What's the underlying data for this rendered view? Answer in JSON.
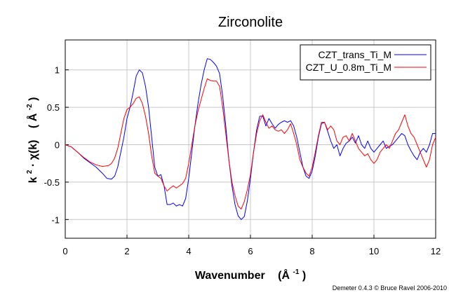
{
  "chart_data": {
    "type": "line",
    "title": "Zirconolite",
    "xlabel": {
      "main": "Wavenumber",
      "unit_base": "Å",
      "unit_sup": "-1"
    },
    "ylabel": {
      "k": "k",
      "k_sup": "2",
      "mid": " · χ(k)",
      "unit_base": "Å",
      "unit_sup": "-2"
    },
    "credit": "Demeter 0.4.3 © Bruce Ravel 2006-2010",
    "xlim": [
      0,
      12
    ],
    "ylim": [
      -1.25,
      1.4
    ],
    "x_ticks": [
      "0",
      "2",
      "4",
      "6",
      "8",
      "10",
      "12"
    ],
    "x_tick_values": [
      0,
      2,
      4,
      6,
      8,
      10,
      12
    ],
    "y_ticks": [
      "-1",
      "-0.5",
      "0",
      "0.5",
      "1"
    ],
    "y_tick_values": [
      -1,
      -0.5,
      0,
      0.5,
      1
    ],
    "grid": true,
    "legend_position": "top-right",
    "series": [
      {
        "name": "CZT_trans_Ti_M",
        "color": "#0000ff",
        "points": [
          [
            0,
            0
          ],
          [
            0.2,
            -0.03
          ],
          [
            0.4,
            -0.1
          ],
          [
            0.6,
            -0.18
          ],
          [
            0.8,
            -0.24
          ],
          [
            1.0,
            -0.3
          ],
          [
            1.2,
            -0.38
          ],
          [
            1.35,
            -0.45
          ],
          [
            1.5,
            -0.46
          ],
          [
            1.6,
            -0.42
          ],
          [
            1.7,
            -0.3
          ],
          [
            1.8,
            -0.1
          ],
          [
            1.9,
            0.1
          ],
          [
            2.0,
            0.35
          ],
          [
            2.1,
            0.5
          ],
          [
            2.2,
            0.7
          ],
          [
            2.3,
            0.92
          ],
          [
            2.4,
            1.0
          ],
          [
            2.5,
            0.96
          ],
          [
            2.6,
            0.78
          ],
          [
            2.7,
            0.5
          ],
          [
            2.8,
            0.1
          ],
          [
            2.9,
            -0.3
          ],
          [
            3.0,
            -0.42
          ],
          [
            3.1,
            -0.4
          ],
          [
            3.2,
            -0.55
          ],
          [
            3.3,
            -0.8
          ],
          [
            3.4,
            -0.8
          ],
          [
            3.5,
            -0.78
          ],
          [
            3.6,
            -0.82
          ],
          [
            3.7,
            -0.8
          ],
          [
            3.8,
            -0.82
          ],
          [
            3.9,
            -0.72
          ],
          [
            4.0,
            -0.45
          ],
          [
            4.1,
            -0.1
          ],
          [
            4.2,
            0.25
          ],
          [
            4.3,
            0.55
          ],
          [
            4.4,
            0.8
          ],
          [
            4.5,
            1.0
          ],
          [
            4.6,
            1.15
          ],
          [
            4.7,
            1.14
          ],
          [
            4.8,
            1.1
          ],
          [
            4.9,
            1.05
          ],
          [
            5.0,
            0.95
          ],
          [
            5.1,
            0.65
          ],
          [
            5.2,
            0.25
          ],
          [
            5.3,
            -0.2
          ],
          [
            5.4,
            -0.55
          ],
          [
            5.5,
            -0.8
          ],
          [
            5.6,
            -0.95
          ],
          [
            5.7,
            -1.0
          ],
          [
            5.8,
            -0.96
          ],
          [
            5.9,
            -0.75
          ],
          [
            6.0,
            -0.45
          ],
          [
            6.1,
            -0.1
          ],
          [
            6.2,
            0.2
          ],
          [
            6.3,
            0.38
          ],
          [
            6.4,
            0.38
          ],
          [
            6.5,
            0.25
          ],
          [
            6.6,
            0.35
          ],
          [
            6.7,
            0.28
          ],
          [
            6.8,
            0.22
          ],
          [
            6.9,
            0.27
          ],
          [
            7.0,
            0.3
          ],
          [
            7.1,
            0.32
          ],
          [
            7.2,
            0.3
          ],
          [
            7.3,
            0.32
          ],
          [
            7.4,
            0.25
          ],
          [
            7.5,
            0.1
          ],
          [
            7.6,
            -0.1
          ],
          [
            7.7,
            -0.3
          ],
          [
            7.8,
            -0.42
          ],
          [
            7.9,
            -0.45
          ],
          [
            8.0,
            -0.35
          ],
          [
            8.1,
            -0.15
          ],
          [
            8.2,
            0.1
          ],
          [
            8.3,
            0.28
          ],
          [
            8.4,
            0.3
          ],
          [
            8.5,
            0.18
          ],
          [
            8.6,
            0.05
          ],
          [
            8.7,
            -0.05
          ],
          [
            8.8,
            0.0
          ],
          [
            8.9,
            -0.15
          ],
          [
            9.0,
            -0.05
          ],
          [
            9.1,
            0.02
          ],
          [
            9.2,
            0.05
          ],
          [
            9.3,
            0.1
          ],
          [
            9.4,
            0.02
          ],
          [
            9.5,
            0.12
          ],
          [
            9.6,
            0.0
          ],
          [
            9.7,
            -0.05
          ],
          [
            9.8,
            0.05
          ],
          [
            9.9,
            -0.05
          ],
          [
            10.0,
            -0.1
          ],
          [
            10.1,
            -0.05
          ],
          [
            10.2,
            0.0
          ],
          [
            10.3,
            0.05
          ],
          [
            10.4,
            -0.05
          ],
          [
            10.5,
            -0.02
          ],
          [
            10.6,
            0.0
          ],
          [
            10.7,
            0.05
          ],
          [
            10.8,
            0.1
          ],
          [
            10.9,
            0.15
          ],
          [
            11.0,
            0.12
          ],
          [
            11.1,
            0.0
          ],
          [
            11.2,
            -0.08
          ],
          [
            11.3,
            -0.15
          ],
          [
            11.4,
            -0.2
          ],
          [
            11.5,
            -0.1
          ],
          [
            11.6,
            -0.05
          ],
          [
            11.7,
            -0.1
          ],
          [
            11.8,
            0.0
          ],
          [
            11.9,
            0.15
          ],
          [
            12.0,
            0.15
          ]
        ]
      },
      {
        "name": "CZT_U_0.8m_Ti_M",
        "color": "#ff0000",
        "points": [
          [
            0,
            0
          ],
          [
            0.2,
            -0.03
          ],
          [
            0.4,
            -0.1
          ],
          [
            0.6,
            -0.17
          ],
          [
            0.8,
            -0.23
          ],
          [
            1.0,
            -0.27
          ],
          [
            1.2,
            -0.29
          ],
          [
            1.4,
            -0.28
          ],
          [
            1.5,
            -0.25
          ],
          [
            1.6,
            -0.18
          ],
          [
            1.7,
            -0.05
          ],
          [
            1.8,
            0.15
          ],
          [
            1.9,
            0.35
          ],
          [
            2.0,
            0.47
          ],
          [
            2.1,
            0.5
          ],
          [
            2.2,
            0.55
          ],
          [
            2.3,
            0.62
          ],
          [
            2.4,
            0.64
          ],
          [
            2.5,
            0.55
          ],
          [
            2.6,
            0.38
          ],
          [
            2.7,
            0.15
          ],
          [
            2.8,
            -0.15
          ],
          [
            2.9,
            -0.38
          ],
          [
            3.0,
            -0.42
          ],
          [
            3.1,
            -0.45
          ],
          [
            3.2,
            -0.55
          ],
          [
            3.3,
            -0.62
          ],
          [
            3.4,
            -0.58
          ],
          [
            3.5,
            -0.55
          ],
          [
            3.6,
            -0.58
          ],
          [
            3.7,
            -0.55
          ],
          [
            3.8,
            -0.52
          ],
          [
            3.9,
            -0.45
          ],
          [
            4.0,
            -0.25
          ],
          [
            4.1,
            0.0
          ],
          [
            4.2,
            0.25
          ],
          [
            4.3,
            0.45
          ],
          [
            4.4,
            0.6
          ],
          [
            4.5,
            0.75
          ],
          [
            4.6,
            0.88
          ],
          [
            4.7,
            0.86
          ],
          [
            4.8,
            0.85
          ],
          [
            4.9,
            0.85
          ],
          [
            5.0,
            0.78
          ],
          [
            5.1,
            0.5
          ],
          [
            5.2,
            0.15
          ],
          [
            5.3,
            -0.2
          ],
          [
            5.4,
            -0.5
          ],
          [
            5.5,
            -0.68
          ],
          [
            5.6,
            -0.82
          ],
          [
            5.7,
            -0.86
          ],
          [
            5.8,
            -0.76
          ],
          [
            5.9,
            -0.6
          ],
          [
            6.0,
            -0.4
          ],
          [
            6.1,
            -0.1
          ],
          [
            6.2,
            0.15
          ],
          [
            6.3,
            0.32
          ],
          [
            6.4,
            0.4
          ],
          [
            6.5,
            0.3
          ],
          [
            6.6,
            0.22
          ],
          [
            6.7,
            0.25
          ],
          [
            6.8,
            0.2
          ],
          [
            6.9,
            0.18
          ],
          [
            7.0,
            0.2
          ],
          [
            7.1,
            0.15
          ],
          [
            7.2,
            0.2
          ],
          [
            7.3,
            0.28
          ],
          [
            7.4,
            0.15
          ],
          [
            7.5,
            0.0
          ],
          [
            7.6,
            -0.2
          ],
          [
            7.7,
            -0.3
          ],
          [
            7.8,
            -0.38
          ],
          [
            7.9,
            -0.42
          ],
          [
            8.0,
            -0.3
          ],
          [
            8.1,
            -0.1
          ],
          [
            8.2,
            0.12
          ],
          [
            8.3,
            0.3
          ],
          [
            8.4,
            0.3
          ],
          [
            8.5,
            0.2
          ],
          [
            8.6,
            0.25
          ],
          [
            8.7,
            0.2
          ],
          [
            8.8,
            0.05
          ],
          [
            8.9,
            0.0
          ],
          [
            9.0,
            0.1
          ],
          [
            9.1,
            0.12
          ],
          [
            9.2,
            0.05
          ],
          [
            9.3,
            0.15
          ],
          [
            9.4,
            0.05
          ],
          [
            9.5,
            -0.05
          ],
          [
            9.6,
            -0.1
          ],
          [
            9.7,
            -0.15
          ],
          [
            9.8,
            -0.12
          ],
          [
            9.9,
            -0.2
          ],
          [
            10.0,
            -0.25
          ],
          [
            10.1,
            -0.2
          ],
          [
            10.2,
            -0.1
          ],
          [
            10.3,
            -0.05
          ],
          [
            10.4,
            0.0
          ],
          [
            10.5,
            -0.05
          ],
          [
            10.6,
            0.05
          ],
          [
            10.7,
            0.15
          ],
          [
            10.8,
            0.2
          ],
          [
            10.9,
            0.3
          ],
          [
            11.0,
            0.4
          ],
          [
            11.1,
            0.25
          ],
          [
            11.2,
            0.15
          ],
          [
            11.3,
            0.1
          ],
          [
            11.4,
            0.0
          ],
          [
            11.5,
            -0.1
          ],
          [
            11.6,
            -0.2
          ],
          [
            11.7,
            -0.3
          ],
          [
            11.8,
            -0.2
          ],
          [
            11.9,
            0.0
          ],
          [
            12.0,
            0.1
          ]
        ]
      }
    ]
  }
}
